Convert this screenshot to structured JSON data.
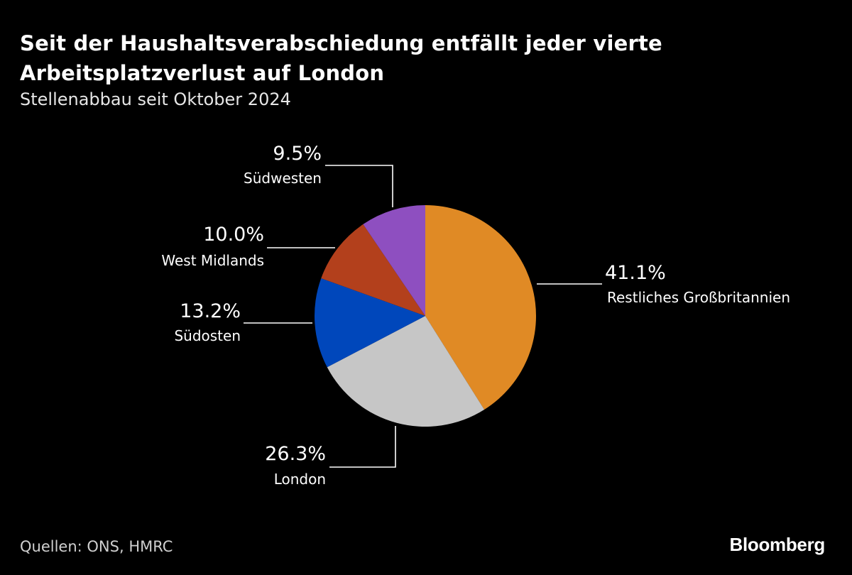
{
  "header": {
    "title": "Seit der Haushaltsverabschiedung entfällt jeder vierte Arbeitsplatzverlust auf London",
    "subtitle": "Stellenabbau seit Oktober 2024"
  },
  "footer": {
    "source": "Quellen: ONS, HMRC",
    "brand": "Bloomberg"
  },
  "chart_data": {
    "type": "pie",
    "title": "Seit der Haushaltsverabschiedung entfällt jeder vierte Arbeitsplatzverlust auf London",
    "subtitle": "Stellenabbau seit Oktober 2024",
    "start_angle_deg": 0,
    "direction": "clockwise",
    "slices": [
      {
        "label": "Restliches Großbritannien",
        "value": 41.1,
        "display": "41.1%",
        "color": "#E08A25"
      },
      {
        "label": "London",
        "value": 26.3,
        "display": "26.3%",
        "color": "#C6C6C6"
      },
      {
        "label": "Südosten",
        "value": 13.2,
        "display": "13.2%",
        "color": "#0047BB"
      },
      {
        "label": "West Midlands",
        "value": 10.0,
        "display": "10.0%",
        "color": "#B3401C"
      },
      {
        "label": "Südwesten",
        "value": 9.5,
        "display": "9.5%",
        "color": "#8E4FC0"
      }
    ]
  }
}
